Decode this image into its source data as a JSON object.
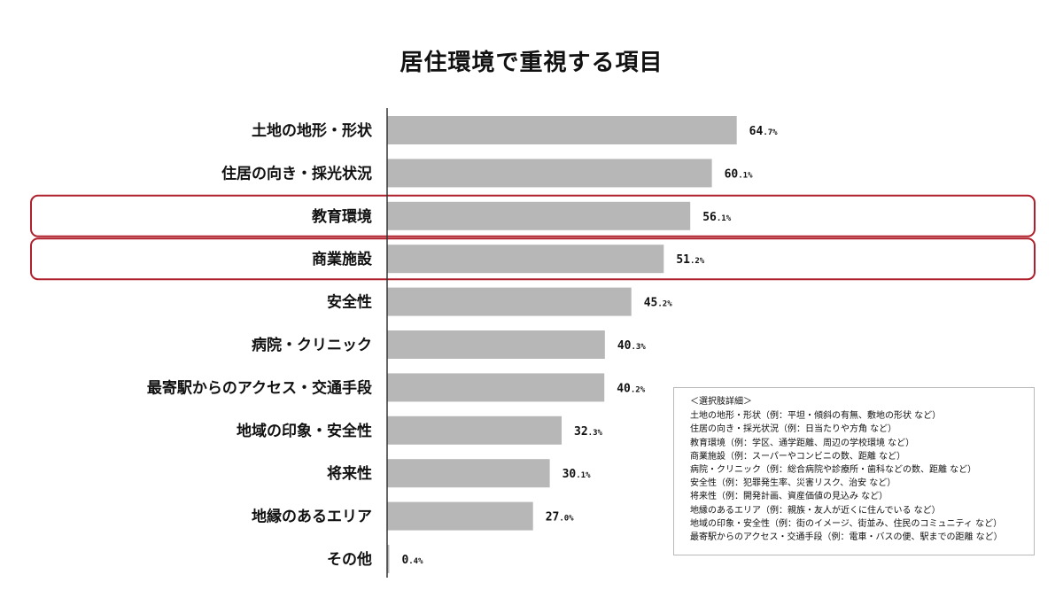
{
  "colors": {
    "bar": "#b7b7b7",
    "highlight": "#b0202c",
    "axis": "#333333"
  },
  "chart_data": {
    "type": "bar",
    "orientation": "horizontal",
    "title": "居住環境で重視する項目",
    "categories": [
      "土地の地形・形状",
      "住居の向き・採光状況",
      "教育環境",
      "商業施設",
      "安全性",
      "病院・クリニック",
      "最寄駅からのアクセス・交通手段",
      "地域の印象・安全性",
      "将来性",
      "地縁のあるエリア",
      "その他"
    ],
    "values": [
      64.7,
      60.1,
      56.1,
      51.2,
      45.2,
      40.3,
      40.2,
      32.3,
      30.1,
      27.0,
      0.4
    ],
    "value_labels": [
      "64.7%",
      "60.1%",
      "56.1%",
      "51.2%",
      "45.2%",
      "40.3%",
      "40.2%",
      "32.3%",
      "30.1%",
      "27.0%",
      "0.4%"
    ],
    "highlighted": [
      "教育環境",
      "商業施設"
    ],
    "xlim": [
      0,
      100
    ],
    "grid": false
  },
  "legend_box": {
    "title": "＜選択肢詳細＞",
    "items": [
      "土地の地形・形状（例：平坦・傾斜の有無、敷地の形状 など）",
      "住居の向き・採光状況（例：日当たりや方角 など）",
      "教育環境（例：学区、通学距離、周辺の学校環境 など）",
      "商業施設（例：スーパーやコンビニの数、距離 など）",
      "病院・クリニック（例：総合病院や診療所・歯科などの数、距離 など）",
      "安全性（例：犯罪発生率、災害リスク、治安 など）",
      "将来性（例：開発計画、資産価値の見込み など）",
      "地縁のあるエリア（例：親族・友人が近くに住んでいる など）",
      "地域の印象・安全性（例：街のイメージ、街並み、住民のコミュニティ など）",
      "最寄駅からのアクセス・交通手段（例：電車・バスの便、駅までの距離 など）"
    ]
  }
}
